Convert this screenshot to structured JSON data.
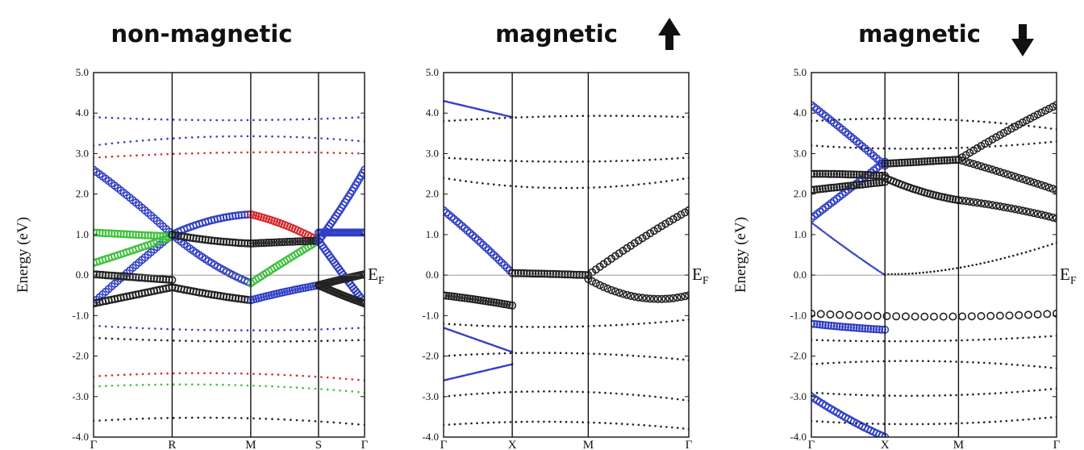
{
  "chart_data": [
    {
      "type": "scatter",
      "title": "non-magnetic",
      "ylabel": "Energy (eV)",
      "ylim": [
        -4.0,
        5.0
      ],
      "yticks": [
        "5.0",
        "4.0",
        "3.0",
        "2.0",
        "1.0",
        "0.0",
        "-1.0",
        "-2.0",
        "-3.0",
        "-4.0"
      ],
      "kpoints": [
        "Γ",
        "R",
        "M",
        "S",
        "Γ"
      ],
      "kpoint_positions": [
        0,
        0.29,
        0.58,
        0.83,
        1.0
      ],
      "fermi_label": "E",
      "fermi_sub": "F",
      "fermi_level": 0.0,
      "colors": {
        "black": "#222222",
        "blue": "#2f3fc4",
        "red": "#d42a2a",
        "green": "#3cc23c"
      },
      "series": [
        {
          "color": "blue",
          "marker": "circle",
          "kx": [
            0,
            0.145,
            0.29
          ],
          "E": [
            -0.68,
            0.2,
            1.0
          ]
        },
        {
          "color": "blue",
          "marker": "circle",
          "kx": [
            0,
            0.145,
            0.29
          ],
          "E": [
            2.6,
            1.9,
            1.0
          ]
        },
        {
          "color": "green",
          "marker": "circle",
          "kx": [
            0,
            0.145,
            0.29
          ],
          "E": [
            1.05,
            1.0,
            0.95
          ]
        },
        {
          "color": "green",
          "marker": "circle",
          "kx": [
            0,
            0.145,
            0.29
          ],
          "E": [
            0.3,
            0.6,
            0.95
          ]
        },
        {
          "color": "black",
          "marker": "circle",
          "kx": [
            0,
            0.145,
            0.29
          ],
          "E": [
            0.02,
            -0.05,
            -0.12
          ]
        },
        {
          "color": "black",
          "marker": "circle",
          "kx": [
            0,
            0.145,
            0.29
          ],
          "E": [
            -0.7,
            -0.5,
            -0.3
          ]
        },
        {
          "color": "blue",
          "marker": "circle",
          "kx": [
            0.29,
            0.435,
            0.58
          ],
          "E": [
            1.0,
            1.45,
            1.5
          ]
        },
        {
          "color": "blue",
          "marker": "circle",
          "kx": [
            0.29,
            0.435,
            0.58
          ],
          "E": [
            1.0,
            0.2,
            -0.2
          ]
        },
        {
          "color": "black",
          "marker": "circle",
          "kx": [
            0.29,
            0.435,
            0.58
          ],
          "E": [
            1.0,
            0.82,
            0.78
          ]
        },
        {
          "color": "black",
          "marker": "circle",
          "kx": [
            0.29,
            0.435,
            0.58
          ],
          "E": [
            -0.3,
            -0.5,
            -0.62
          ]
        },
        {
          "color": "red",
          "marker": "circle",
          "kx": [
            0.58,
            0.705,
            0.83
          ],
          "E": [
            1.5,
            1.3,
            0.85
          ]
        },
        {
          "color": "green",
          "marker": "circle",
          "kx": [
            0.58,
            0.705,
            0.83
          ],
          "E": [
            -0.2,
            0.35,
            0.85
          ]
        },
        {
          "color": "black",
          "marker": "circle",
          "kx": [
            0.58,
            0.705,
            0.83
          ],
          "E": [
            0.78,
            0.82,
            0.85
          ]
        },
        {
          "color": "blue",
          "marker": "circle",
          "kx": [
            0.58,
            0.705,
            0.83
          ],
          "E": [
            -0.62,
            -0.4,
            -0.25
          ]
        },
        {
          "color": "blue",
          "marker": "circle",
          "kx": [
            0.83,
            0.915,
            1.0
          ],
          "E": [
            0.85,
            1.6,
            2.6
          ]
        },
        {
          "color": "blue",
          "marker": "circle",
          "kx": [
            0.83,
            0.915,
            1.0
          ],
          "E": [
            0.85,
            0.05,
            -0.68
          ]
        },
        {
          "color": "blue",
          "marker": "circle",
          "kx": [
            0.83,
            0.915,
            1.0
          ],
          "E": [
            1.05,
            1.05,
            1.05
          ]
        },
        {
          "color": "black",
          "marker": "circle",
          "kx": [
            0.83,
            0.915,
            1.0
          ],
          "E": [
            -0.25,
            -0.1,
            0.02
          ]
        },
        {
          "color": "black",
          "marker": "circle",
          "kx": [
            0.83,
            0.915,
            1.0
          ],
          "E": [
            -0.25,
            -0.5,
            -0.7
          ]
        },
        {
          "color": "blue",
          "marker": "dot",
          "kx": [
            0,
            0.5,
            1.0
          ],
          "E": [
            3.2,
            3.6,
            3.3
          ]
        },
        {
          "color": "blue",
          "marker": "dot",
          "kx": [
            0,
            0.5,
            1.0
          ],
          "E": [
            3.9,
            3.75,
            3.9
          ]
        },
        {
          "color": "red",
          "marker": "dot",
          "kx": [
            0,
            0.5,
            1.0
          ],
          "E": [
            2.9,
            3.1,
            3.0
          ]
        },
        {
          "color": "blue",
          "marker": "dot",
          "kx": [
            0,
            0.5,
            1.0
          ],
          "E": [
            -1.25,
            -1.45,
            -1.3
          ]
        },
        {
          "color": "black",
          "marker": "dot",
          "kx": [
            0,
            0.5,
            1.0
          ],
          "E": [
            -1.55,
            -1.7,
            -1.6
          ]
        },
        {
          "color": "red",
          "marker": "dot",
          "kx": [
            0,
            0.5,
            1.0
          ],
          "E": [
            -2.5,
            -2.3,
            -2.6
          ]
        },
        {
          "color": "green",
          "marker": "dot",
          "kx": [
            0,
            0.5,
            1.0
          ],
          "E": [
            -2.75,
            -2.6,
            -2.9
          ]
        },
        {
          "color": "black",
          "marker": "dot",
          "kx": [
            0,
            0.5,
            1.0
          ],
          "E": [
            -3.6,
            -3.4,
            -3.7
          ]
        }
      ]
    },
    {
      "type": "scatter",
      "title": "magnetic",
      "arrow": "up",
      "ylim": [
        -4.0,
        5.0
      ],
      "yticks": [
        "5.0",
        "4.0",
        "3.0",
        "2.0",
        "1.0",
        "0.0",
        "-1.0",
        "-2.0",
        "-3.0",
        "-4.0"
      ],
      "kpoints": [
        "Γ",
        "X",
        "M",
        "Γ"
      ],
      "kpoint_positions": [
        0,
        0.28,
        0.59,
        1.0
      ],
      "fermi_label": "E",
      "fermi_sub": "F",
      "fermi_level": 0.0,
      "colors": {
        "black": "#222222",
        "blue": "#2f3fc4",
        "red": "#d42a2a",
        "green": "#3cc23c"
      },
      "series": [
        {
          "color": "blue",
          "marker": "circle",
          "kx": [
            0,
            0.14,
            0.28
          ],
          "E": [
            1.6,
            0.9,
            0.05
          ]
        },
        {
          "color": "black",
          "marker": "circle",
          "kx": [
            0,
            0.14,
            0.28
          ],
          "E": [
            -0.5,
            -0.6,
            -0.75
          ]
        },
        {
          "color": "black",
          "marker": "circle",
          "kx": [
            0.28,
            0.435,
            0.59
          ],
          "E": [
            0.05,
            0.03,
            0.0
          ]
        },
        {
          "color": "black",
          "marker": "circle",
          "kx": [
            0.59,
            0.795,
            1.0
          ],
          "E": [
            0.0,
            0.9,
            1.6
          ]
        },
        {
          "color": "black",
          "marker": "circle",
          "kx": [
            0.59,
            0.795,
            1.0
          ],
          "E": [
            -0.1,
            -0.8,
            -0.5
          ]
        },
        {
          "color": "black",
          "marker": "dot",
          "kx": [
            0,
            0.5,
            1.0
          ],
          "E": [
            2.9,
            2.7,
            2.9
          ]
        },
        {
          "color": "black",
          "marker": "dot",
          "kx": [
            0,
            0.5,
            1.0
          ],
          "E": [
            2.4,
            1.9,
            2.4
          ]
        },
        {
          "color": "black",
          "marker": "dot",
          "kx": [
            0,
            0.5,
            1.0
          ],
          "E": [
            3.8,
            4.0,
            3.9
          ]
        },
        {
          "color": "blue",
          "marker": "dot",
          "kx": [
            0,
            0.14,
            0.28
          ],
          "E": [
            4.3,
            4.1,
            3.9
          ]
        },
        {
          "color": "blue",
          "marker": "dot",
          "kx": [
            0,
            0.14,
            0.28
          ],
          "E": [
            -1.3,
            -1.6,
            -1.9
          ]
        },
        {
          "color": "blue",
          "marker": "dot",
          "kx": [
            0,
            0.14,
            0.28
          ],
          "E": [
            -2.6,
            -2.4,
            -2.2
          ]
        },
        {
          "color": "black",
          "marker": "dot",
          "kx": [
            0,
            0.5,
            1.0
          ],
          "E": [
            -1.2,
            -1.4,
            -1.1
          ]
        },
        {
          "color": "black",
          "marker": "dot",
          "kx": [
            0,
            0.5,
            1.0
          ],
          "E": [
            -2.0,
            -1.8,
            -2.1
          ]
        },
        {
          "color": "black",
          "marker": "dot",
          "kx": [
            0,
            0.5,
            1.0
          ],
          "E": [
            -3.0,
            -2.7,
            -3.1
          ]
        },
        {
          "color": "black",
          "marker": "dot",
          "kx": [
            0,
            0.5,
            1.0
          ],
          "E": [
            -3.7,
            -3.5,
            -3.8
          ]
        }
      ]
    },
    {
      "type": "scatter",
      "title": "magnetic",
      "arrow": "down",
      "ylabel": "Energy (eV)",
      "ylim": [
        -4.0,
        5.0
      ],
      "yticks": [
        "5.0",
        "4.0",
        "3.0",
        "2.0",
        "1.0",
        "0.0",
        "-1.0",
        "-2.0",
        "-3.0",
        "-4.0"
      ],
      "kpoints": [
        "Γ",
        "X",
        "M",
        "Γ"
      ],
      "kpoint_positions": [
        0,
        0.3,
        0.6,
        1.0
      ],
      "fermi_label": "E",
      "fermi_sub": "F",
      "fermi_level": 0.0,
      "colors": {
        "black": "#222222",
        "blue": "#2f3fc4",
        "red": "#d42a2a",
        "green": "#3cc23c"
      },
      "series": [
        {
          "color": "blue",
          "marker": "circle",
          "kx": [
            0,
            0.15,
            0.3
          ],
          "E": [
            1.4,
            2.1,
            2.8
          ]
        },
        {
          "color": "blue",
          "marker": "circle",
          "kx": [
            0,
            0.15,
            0.3
          ],
          "E": [
            4.2,
            3.5,
            2.7
          ]
        },
        {
          "color": "black",
          "marker": "circle",
          "kx": [
            0,
            0.15,
            0.3
          ],
          "E": [
            2.5,
            2.5,
            2.45
          ]
        },
        {
          "color": "black",
          "marker": "circle",
          "kx": [
            0,
            0.15,
            0.3
          ],
          "E": [
            2.1,
            2.2,
            2.3
          ]
        },
        {
          "color": "black",
          "marker": "circle",
          "kx": [
            0.3,
            0.45,
            0.6
          ],
          "E": [
            2.75,
            2.8,
            2.85
          ]
        },
        {
          "color": "black",
          "marker": "circle",
          "kx": [
            0.3,
            0.45,
            0.6
          ],
          "E": [
            2.4,
            2.0,
            1.85
          ]
        },
        {
          "color": "black",
          "marker": "circle",
          "kx": [
            0.6,
            0.8,
            1.0
          ],
          "E": [
            2.85,
            2.5,
            2.1
          ]
        },
        {
          "color": "black",
          "marker": "circle",
          "kx": [
            0.6,
            0.8,
            1.0
          ],
          "E": [
            1.85,
            1.7,
            1.4
          ]
        },
        {
          "color": "black",
          "marker": "circle",
          "kx": [
            0.6,
            0.8,
            1.0
          ],
          "E": [
            2.85,
            3.6,
            4.2
          ]
        },
        {
          "color": "black",
          "marker": "circle",
          "kx": [
            0,
            0.5,
            1.0
          ],
          "E": [
            -0.95,
            -1.1,
            -0.95
          ]
        },
        {
          "color": "blue",
          "marker": "dot",
          "kx": [
            0,
            0.15,
            0.3
          ],
          "E": [
            1.3,
            0.6,
            0.0
          ]
        },
        {
          "color": "black",
          "marker": "dot",
          "kx": [
            0,
            0.5,
            1.0
          ],
          "E": [
            3.8,
            4.0,
            3.6
          ]
        },
        {
          "color": "black",
          "marker": "dot",
          "kx": [
            0,
            0.5,
            1.0
          ],
          "E": [
            3.2,
            3.0,
            3.3
          ]
        },
        {
          "color": "black",
          "marker": "dot",
          "kx": [
            0.3,
            0.6,
            1.0
          ],
          "E": [
            0.02,
            0.0,
            0.8
          ]
        },
        {
          "color": "blue",
          "marker": "circle",
          "kx": [
            0,
            0.15,
            0.3
          ],
          "E": [
            -1.2,
            -1.3,
            -1.35
          ]
        },
        {
          "color": "black",
          "marker": "dot",
          "kx": [
            0,
            0.5,
            1.0
          ],
          "E": [
            -1.6,
            -1.7,
            -1.5
          ]
        },
        {
          "color": "black",
          "marker": "dot",
          "kx": [
            0,
            0.5,
            1.0
          ],
          "E": [
            -2.2,
            -2.0,
            -2.3
          ]
        },
        {
          "color": "black",
          "marker": "dot",
          "kx": [
            0,
            0.5,
            1.0
          ],
          "E": [
            -2.9,
            -3.1,
            -2.8
          ]
        },
        {
          "color": "blue",
          "marker": "circle",
          "kx": [
            0,
            0.15,
            0.3
          ],
          "E": [
            -3.0,
            -3.6,
            -4.0
          ]
        },
        {
          "color": "black",
          "marker": "dot",
          "kx": [
            0,
            0.5,
            1.0
          ],
          "E": [
            -3.6,
            -3.8,
            -3.5
          ]
        }
      ]
    }
  ]
}
